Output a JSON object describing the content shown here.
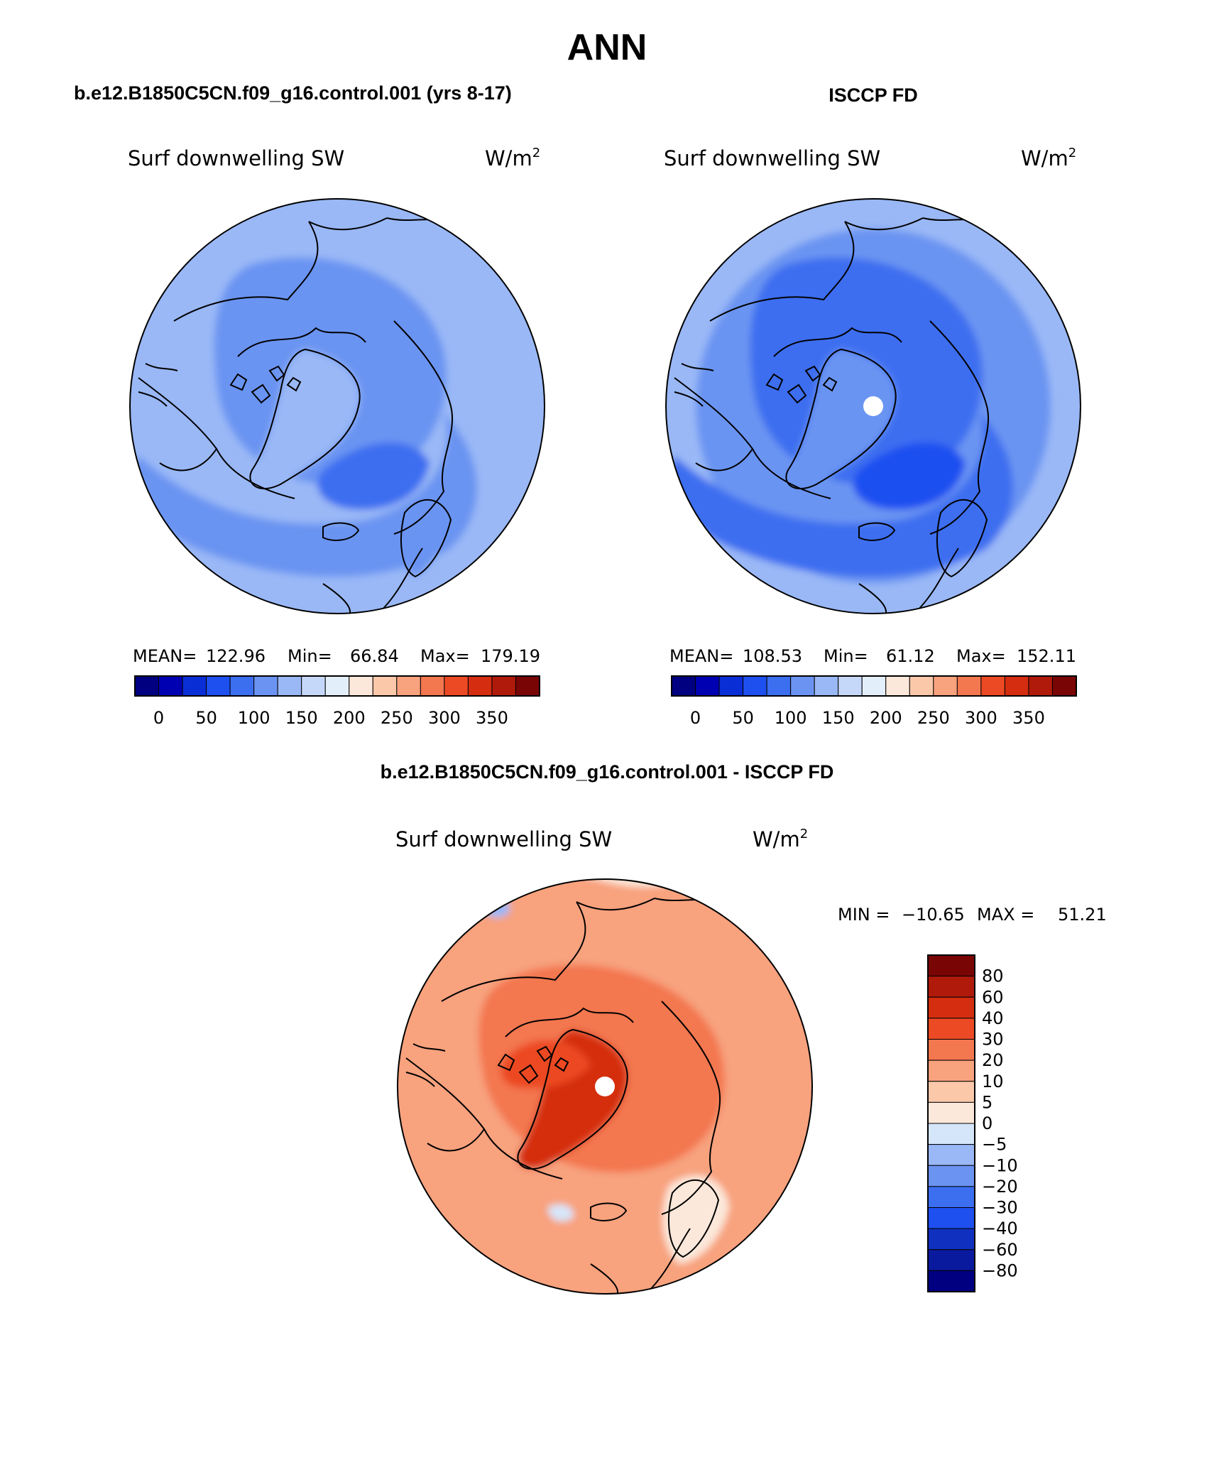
{
  "figure": {
    "title": "ANN",
    "bottom_title": "b.e12.B1850C5CN.f09_g16.control.001 - ISCCP FD"
  },
  "colors": {
    "abs_scale": [
      "#000080",
      "#0000b3",
      "#0a2ed6",
      "#1e50f0",
      "#3c6ef0",
      "#6b94f2",
      "#9ab8f6",
      "#c6d8fa",
      "#e3eefb",
      "#fce8da",
      "#fbc8aa",
      "#f8a27e",
      "#f3774f",
      "#ec4a24",
      "#d42d10",
      "#b01a0a",
      "#7a0505"
    ],
    "diff_scale": [
      "#000080",
      "#0a1a9e",
      "#1030c0",
      "#1e50f0",
      "#3c6ef0",
      "#6b94f2",
      "#9ab8f6",
      "#d6e6fa",
      "#fce8da",
      "#fbc8aa",
      "#f8a27e",
      "#f3774f",
      "#ec4a24",
      "#d42d10",
      "#b01a0a",
      "#7a0505"
    ]
  },
  "chart_data": [
    {
      "type": "heatmap",
      "panel": "model",
      "title": "b.e12.B1850C5CN.f09_g16.control.001 (yrs 8-17)",
      "variable": "Surf downwelling SW",
      "units": "W/m",
      "units_exp": "2",
      "projection": "north polar stereographic",
      "stats": {
        "mean_label": "MEAN=",
        "mean": "122.96",
        "min_label": "Min=",
        "min": "66.84",
        "max_label": "Max=",
        "max": "179.19"
      },
      "colorbar": {
        "ticks": [
          "0",
          "50",
          "100",
          "150",
          "200",
          "250",
          "300",
          "350"
        ]
      },
      "regions": [
        {
          "name": "background",
          "value": 130
        },
        {
          "name": "north-pacific",
          "value": 145
        },
        {
          "name": "canada-alaska",
          "value": 135
        },
        {
          "name": "central-arctic",
          "value": 110
        },
        {
          "name": "north-atlantic-band",
          "value": 100
        },
        {
          "name": "barents-minimum",
          "value": 75
        },
        {
          "name": "greenland",
          "value": 145
        },
        {
          "name": "siberia-east",
          "value": 140
        },
        {
          "name": "scandinavia",
          "value": 120
        }
      ]
    },
    {
      "type": "heatmap",
      "panel": "obs",
      "title": "ISCCP FD",
      "variable": "Surf downwelling SW",
      "units": "W/m",
      "units_exp": "2",
      "projection": "north polar stereographic",
      "stats": {
        "mean_label": "MEAN=",
        "mean": "108.53",
        "min_label": "Min=",
        "min": "61.12",
        "max_label": "Max=",
        "max": "152.11"
      },
      "colorbar": {
        "ticks": [
          "0",
          "50",
          "100",
          "150",
          "200",
          "250",
          "300",
          "350"
        ]
      },
      "regions": [
        {
          "name": "background",
          "value": 120
        },
        {
          "name": "outer-ring",
          "value": 140
        },
        {
          "name": "central-arctic",
          "value": 85
        },
        {
          "name": "north-atlantic-band",
          "value": 90
        },
        {
          "name": "barents-minimum",
          "value": 70
        },
        {
          "name": "greenland",
          "value": 105
        },
        {
          "name": "pole-missing",
          "value": null
        }
      ]
    },
    {
      "type": "heatmap",
      "panel": "difference",
      "variable": "Surf downwelling SW",
      "units": "W/m",
      "units_exp": "2",
      "projection": "north polar stereographic",
      "stats": {
        "min_label": "MIN =",
        "min": "−10.65",
        "max_label": "MAX =",
        "max": "51.21"
      },
      "colorbar": {
        "ticks": [
          "80",
          "60",
          "40",
          "30",
          "20",
          "10",
          "5",
          "0",
          "−5",
          "−10",
          "−20",
          "−30",
          "−40",
          "−60",
          "−80"
        ]
      },
      "regions": [
        {
          "name": "background",
          "value": 12
        },
        {
          "name": "central-arctic",
          "value": 25
        },
        {
          "name": "greenland",
          "value": 45
        },
        {
          "name": "canadian-archipelago",
          "value": 38
        },
        {
          "name": "scandinavia",
          "value": 3
        },
        {
          "name": "north-pacific",
          "value": 2
        },
        {
          "name": "patch-negative-1",
          "value": -6
        },
        {
          "name": "patch-negative-2",
          "value": -4
        },
        {
          "name": "pole-missing",
          "value": null
        }
      ]
    }
  ]
}
